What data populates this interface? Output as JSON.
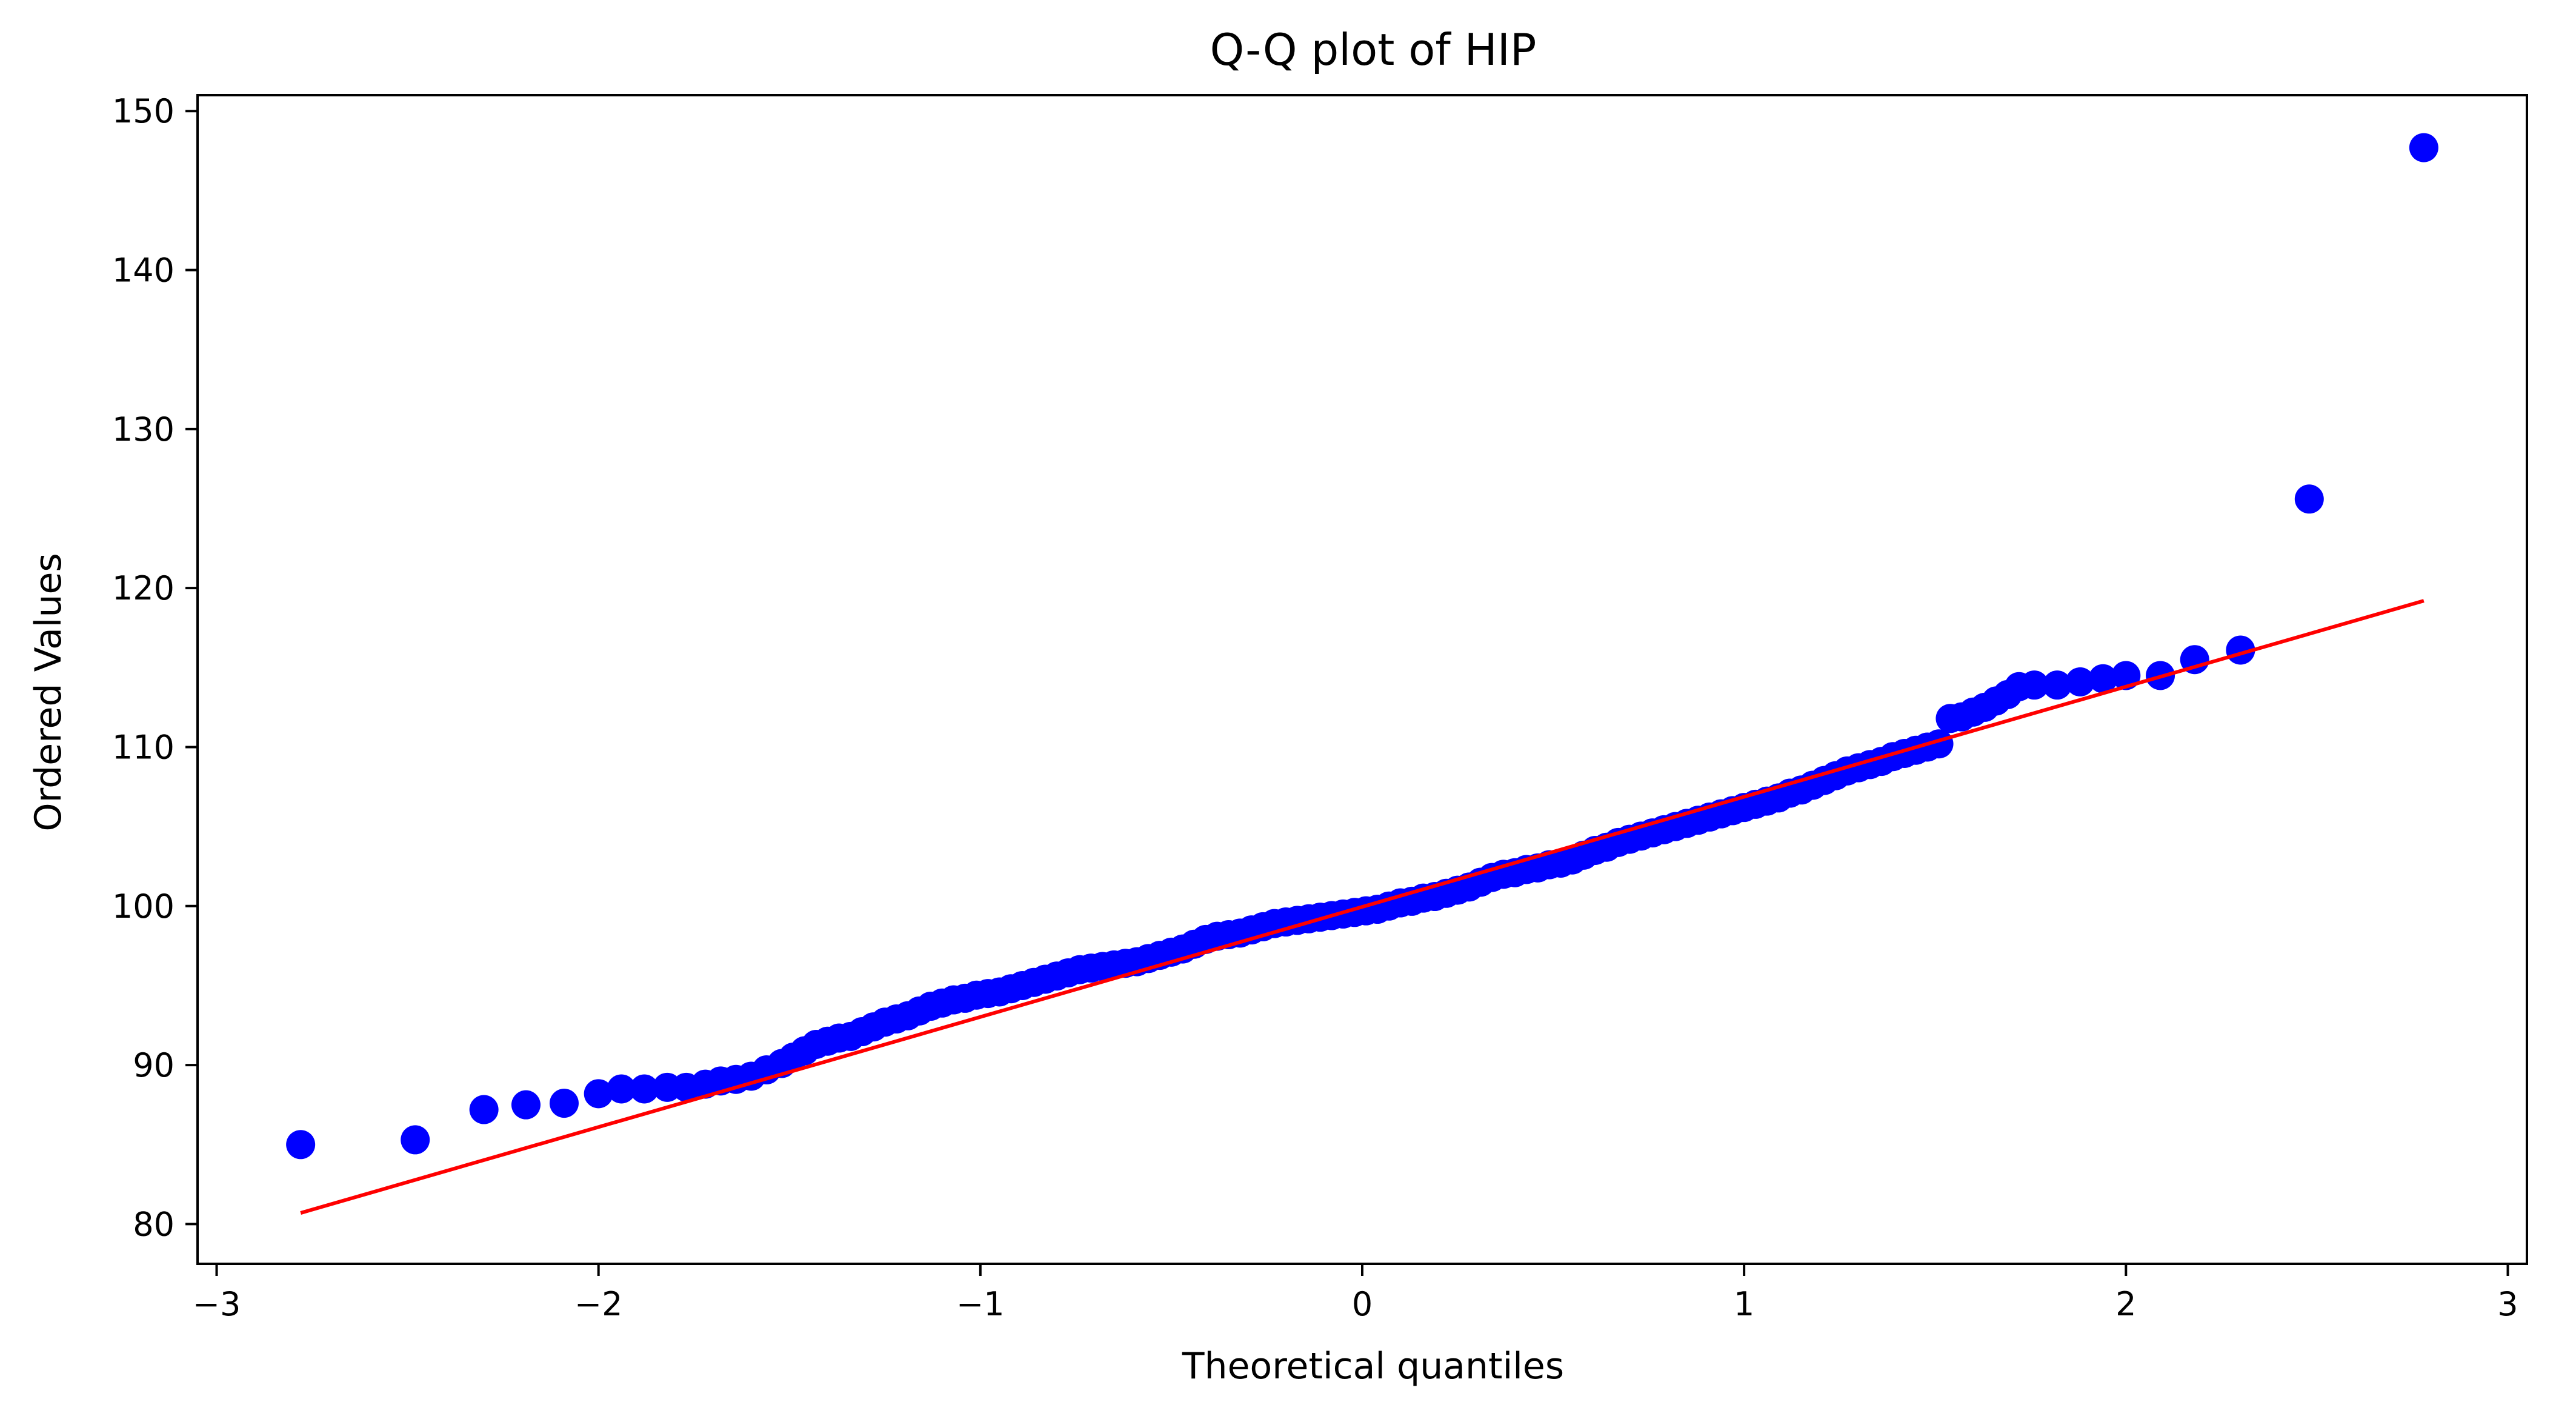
{
  "chart_data": {
    "type": "scatter",
    "title": "Q-Q plot of HIP",
    "xlabel": "Theoretical quantiles",
    "ylabel": "Ordered Values",
    "xlim": [
      -3.05,
      3.05
    ],
    "ylim": [
      77.5,
      151.0
    ],
    "xticks": [
      -3,
      -2,
      -1,
      0,
      1,
      2,
      3
    ],
    "xtick_labels": [
      "−3",
      "−2",
      "−1",
      "0",
      "1",
      "2",
      "3"
    ],
    "yticks": [
      80,
      90,
      100,
      110,
      120,
      130,
      140,
      150
    ],
    "ytick_labels": [
      "80",
      "90",
      "100",
      "110",
      "120",
      "130",
      "140",
      "150"
    ],
    "grid": false,
    "colors": {
      "points": "#0000ff",
      "fit_line": "#ff0000",
      "axes": "#000000"
    },
    "fit_line": {
      "x": [
        -2.78,
        2.78
      ],
      "y": [
        80.7,
        119.2
      ]
    },
    "series": [
      {
        "x": [
          -2.78,
          -2.48,
          -2.3,
          -2.19,
          -2.09,
          -2.0,
          -1.94,
          -1.88,
          -1.82,
          -1.77,
          -1.72,
          -1.68,
          -1.64,
          -1.6,
          -1.56,
          -1.52,
          -1.49,
          -1.46,
          -1.43,
          -1.4,
          -1.37,
          -1.34,
          -1.31,
          -1.28,
          -1.25,
          -1.22,
          -1.19,
          -1.16,
          -1.13,
          -1.1,
          -1.07,
          -1.04,
          -1.01,
          -0.98,
          -0.95,
          -0.92,
          -0.89,
          -0.86,
          -0.83,
          -0.8,
          -0.77,
          -0.74,
          -0.71,
          -0.68,
          -0.65,
          -0.62,
          -0.59,
          -0.56,
          -0.53,
          -0.5,
          -0.47,
          -0.44,
          -0.41,
          -0.38,
          -0.35,
          -0.32,
          -0.29,
          -0.26,
          -0.23,
          -0.2,
          -0.17,
          -0.14,
          -0.11,
          -0.08,
          -0.05,
          -0.02,
          0.01,
          0.04,
          0.07,
          0.1,
          0.13,
          0.16,
          0.19,
          0.22,
          0.25,
          0.28,
          0.31,
          0.34,
          0.37,
          0.4,
          0.43,
          0.46,
          0.49,
          0.52,
          0.55,
          0.58,
          0.61,
          0.64,
          0.67,
          0.7,
          0.73,
          0.76,
          0.79,
          0.82,
          0.85,
          0.88,
          0.91,
          0.94,
          0.97,
          1.0,
          1.03,
          1.06,
          1.09,
          1.12,
          1.15,
          1.18,
          1.21,
          1.24,
          1.27,
          1.3,
          1.33,
          1.36,
          1.39,
          1.42,
          1.45,
          1.48,
          1.51,
          1.54,
          1.57,
          1.6,
          1.63,
          1.66,
          1.69,
          1.72,
          1.76,
          1.82,
          1.88,
          1.94,
          2.0,
          2.09,
          2.18,
          2.3,
          2.48,
          2.78
        ],
        "y": [
          85.0,
          85.3,
          87.2,
          87.5,
          87.6,
          88.2,
          88.5,
          88.5,
          88.6,
          88.6,
          88.8,
          89.0,
          89.1,
          89.3,
          89.7,
          90.1,
          90.5,
          90.9,
          91.3,
          91.5,
          91.7,
          91.8,
          92.1,
          92.4,
          92.7,
          92.9,
          93.1,
          93.4,
          93.7,
          93.9,
          94.1,
          94.2,
          94.4,
          94.5,
          94.6,
          94.8,
          95.0,
          95.2,
          95.4,
          95.6,
          95.8,
          96.0,
          96.1,
          96.2,
          96.3,
          96.4,
          96.5,
          96.7,
          96.9,
          97.1,
          97.3,
          97.6,
          97.9,
          98.1,
          98.2,
          98.3,
          98.5,
          98.7,
          98.9,
          99.0,
          99.1,
          99.2,
          99.3,
          99.4,
          99.5,
          99.6,
          99.7,
          99.8,
          100.0,
          100.2,
          100.3,
          100.5,
          100.6,
          100.8,
          101.0,
          101.2,
          101.5,
          101.8,
          102.0,
          102.1,
          102.3,
          102.4,
          102.6,
          102.7,
          102.9,
          103.2,
          103.5,
          103.7,
          104.0,
          104.2,
          104.4,
          104.6,
          104.8,
          105.0,
          105.2,
          105.4,
          105.6,
          105.8,
          106.0,
          106.2,
          106.4,
          106.6,
          106.8,
          107.1,
          107.3,
          107.6,
          107.9,
          108.2,
          108.5,
          108.7,
          108.9,
          109.1,
          109.4,
          109.6,
          109.8,
          110.0,
          110.2,
          111.8,
          111.9,
          112.2,
          112.5,
          112.9,
          113.3,
          113.8,
          113.9,
          113.9,
          114.1,
          114.3,
          114.5,
          114.5,
          115.5,
          116.1,
          125.6,
          147.7
        ]
      }
    ]
  }
}
